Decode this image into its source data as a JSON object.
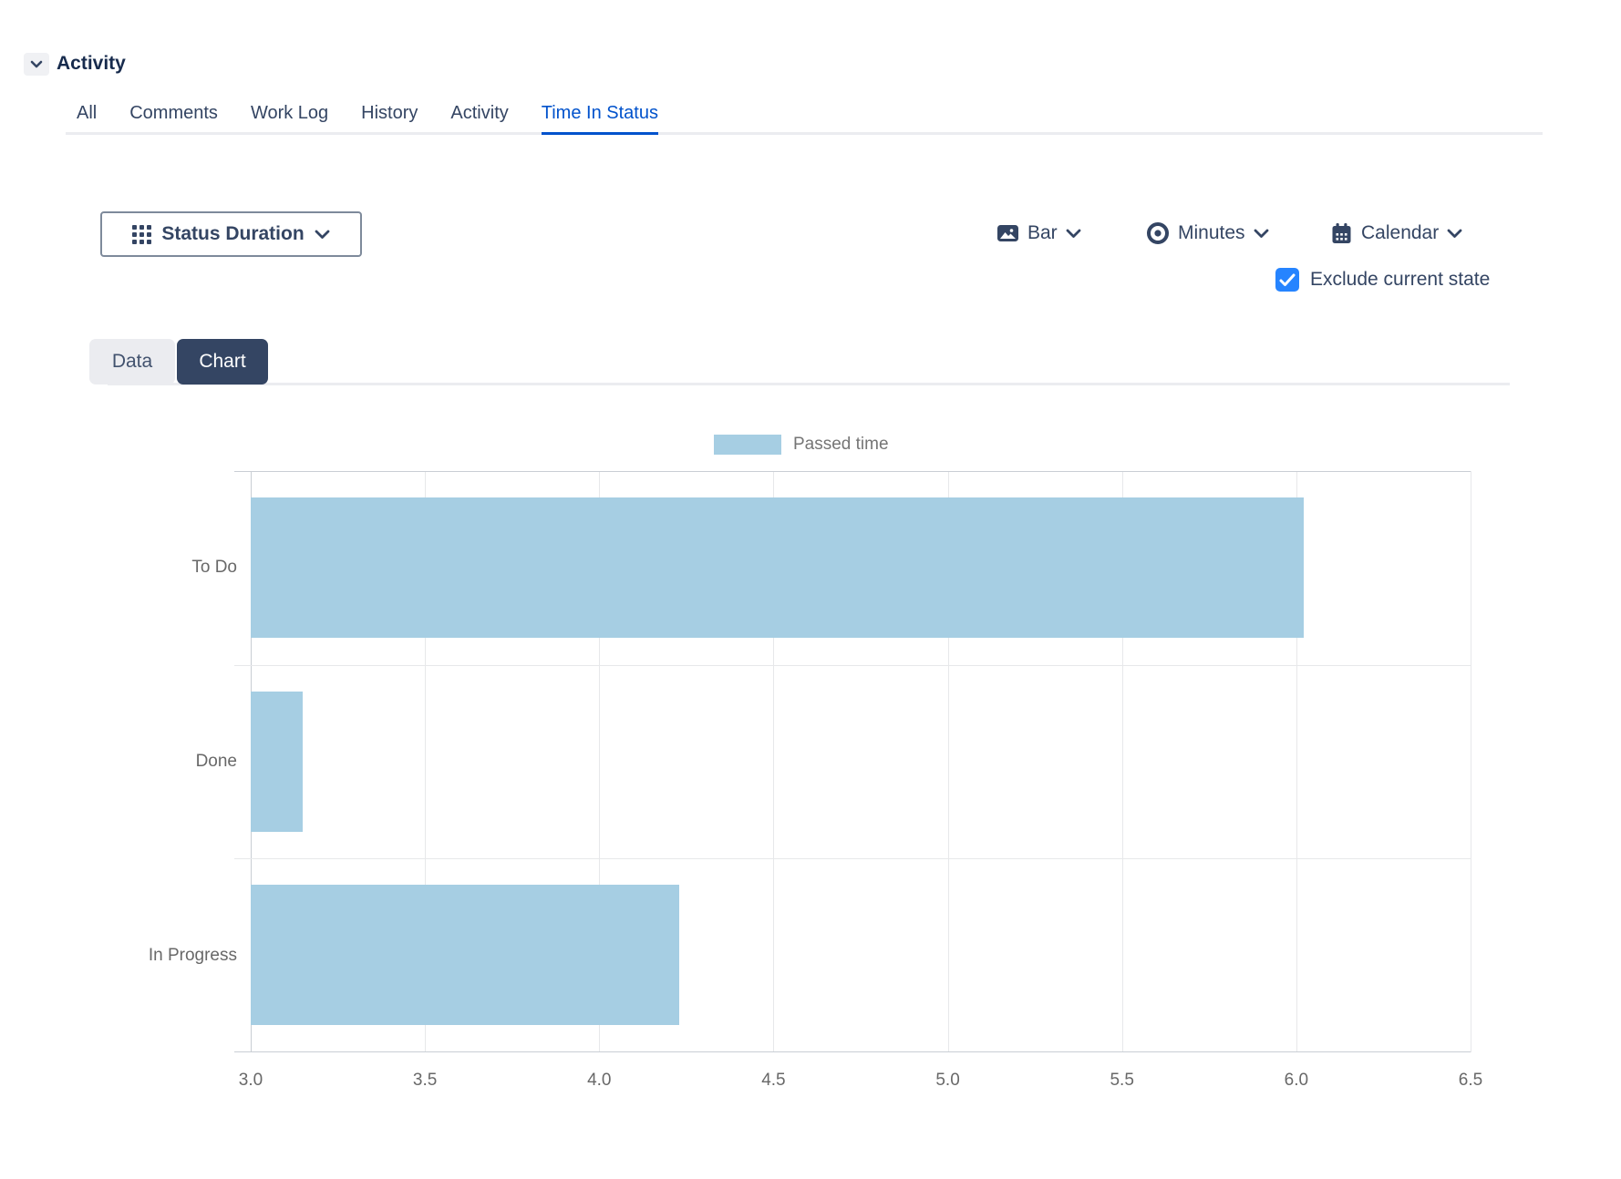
{
  "theme": {
    "accent_blue": "#0052CC",
    "checkbox_blue": "#2684FF",
    "chart_tab_bg": "#344563",
    "bar_blue": "#A6CEE3",
    "text_navy": "#344563",
    "heading_navy": "#172B4D",
    "muted_gray": "#686868",
    "line_gray": "#EBECF0"
  },
  "header": {
    "title": "Activity",
    "collapse_icon": "chevron-down-icon"
  },
  "activity_tabs": {
    "items": [
      {
        "label": "All",
        "active": false
      },
      {
        "label": "Comments",
        "active": false
      },
      {
        "label": "Work Log",
        "active": false
      },
      {
        "label": "History",
        "active": false
      },
      {
        "label": "Activity",
        "active": false
      },
      {
        "label": "Time In Status",
        "active": true
      }
    ]
  },
  "toolbar": {
    "report_selector": {
      "label": "Status Duration",
      "icon": "grid-icon"
    },
    "chart_type": {
      "label": "Bar",
      "icon": "image-icon"
    },
    "unit": {
      "label": "Minutes",
      "icon": "eye-icon"
    },
    "time_mode": {
      "label": "Calendar",
      "icon": "calendar-icon"
    },
    "exclude_checkbox": {
      "label": "Exclude current state",
      "checked": true
    }
  },
  "view_tabs": {
    "data_label": "Data",
    "chart_label": "Chart",
    "active": "Chart"
  },
  "chart_data": {
    "type": "bar",
    "orientation": "horizontal",
    "title": "",
    "xlabel": "",
    "ylabel": "",
    "legend": {
      "label": "Passed time",
      "swatch_color": "#A6CEE3",
      "position": "top-center"
    },
    "categories": [
      "To Do",
      "Done",
      "In Progress"
    ],
    "series": [
      {
        "name": "Passed time",
        "values": [
          6.02,
          3.15,
          4.23
        ]
      }
    ],
    "unit": "Minutes",
    "xlim": [
      3.0,
      6.5
    ],
    "x_ticks": [
      "3.0",
      "3.5",
      "4.0",
      "4.5",
      "5.0",
      "5.5",
      "6.0",
      "6.5"
    ],
    "grid": true,
    "bar_color": "#A6CEE3"
  }
}
